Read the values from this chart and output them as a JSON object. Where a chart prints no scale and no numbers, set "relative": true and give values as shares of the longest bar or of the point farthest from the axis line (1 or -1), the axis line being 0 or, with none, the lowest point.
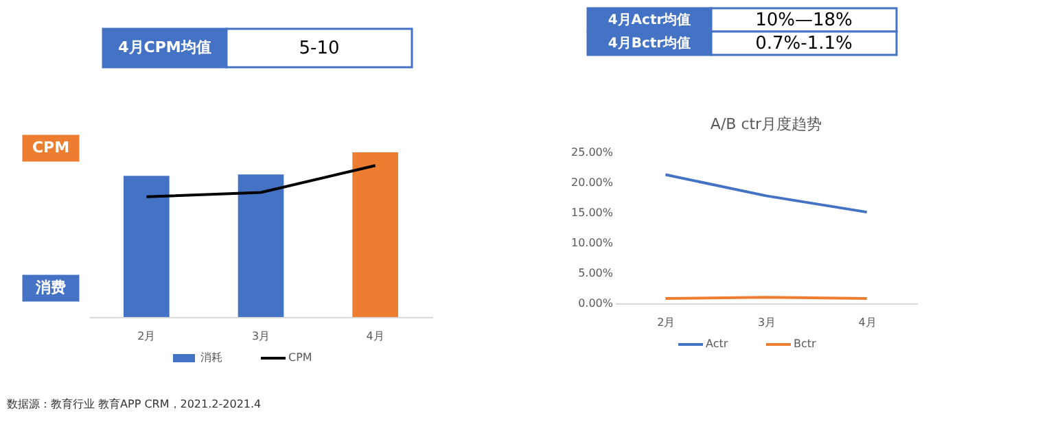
{
  "chart_data": [
    {
      "type": "bar",
      "relative": true,
      "categories": [
        "2月",
        "3月",
        "4月"
      ],
      "legend": "bottom",
      "series": [
        {
          "name": "消耗",
          "type": "bar",
          "color": "#4472c4",
          "colors": [
            "#4472c4",
            "#4472c4",
            "#ed7d31"
          ],
          "values": [
            0.857,
            0.866,
            1
          ]
        },
        {
          "name": "CPM",
          "type": "line",
          "color": "#000000",
          "values": [
            0.73,
            0.756,
            0.92
          ]
        }
      ],
      "annotations": [
        "4月CPM均值",
        "5-10",
        "CPM",
        "消费",
        "数据源：教育行业 教育APP CRM，2021.2-2021.4"
      ]
    },
    {
      "type": "line",
      "title": "A/B ctr月度趋势",
      "categories": [
        "2月",
        "3月",
        "4月"
      ],
      "legend": "bottom",
      "grid": false,
      "ylim": [
        0,
        25
      ],
      "yticks": [
        {
          "value": 0,
          "label": "0.00%"
        },
        {
          "value": 5,
          "label": "5.00%"
        },
        {
          "value": 10,
          "label": "10.00%"
        },
        {
          "value": 15,
          "label": "15.00%"
        },
        {
          "value": 20,
          "label": "20.00%"
        },
        {
          "value": 25,
          "label": "25.00%"
        }
      ],
      "series": [
        {
          "name": "Actr",
          "color": "#4472c4",
          "values": [
            21.3,
            17.8,
            15.1
          ]
        },
        {
          "name": "Bctr",
          "color": "#ed7d31",
          "values": [
            0.8,
            1.0,
            0.8
          ]
        }
      ],
      "annotations": [
        "4月Actr均值",
        "10%—18%",
        "4月Bctr均值",
        "0.7%-1.1%"
      ]
    }
  ]
}
